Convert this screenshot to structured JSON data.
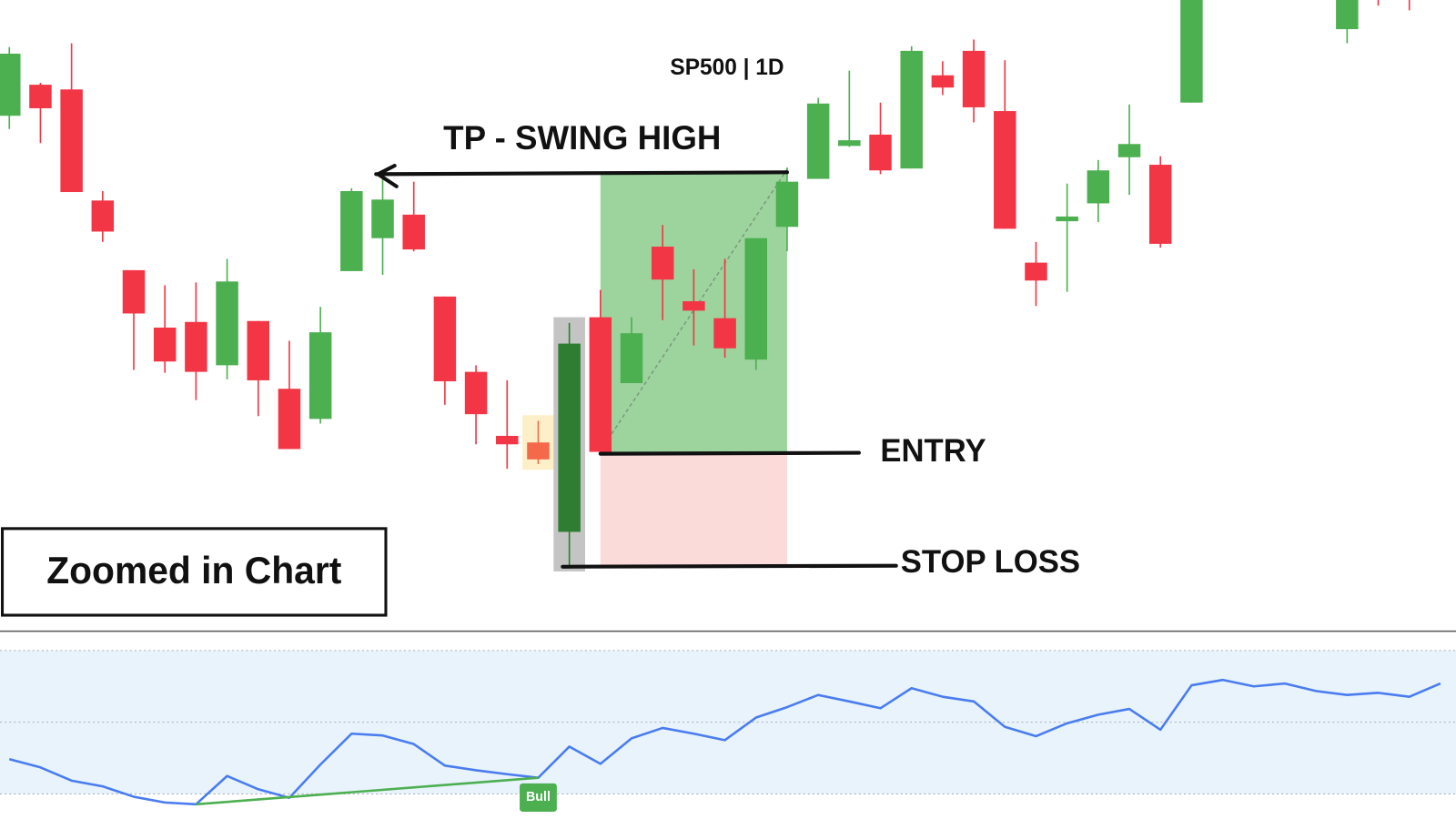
{
  "chart_data": {
    "type": "candlestick",
    "title": "SP500 | 1D",
    "annotation": "Zoomed in Chart",
    "x": [
      0,
      1,
      2,
      3,
      4,
      5,
      6,
      7,
      8,
      9,
      10,
      11,
      12,
      13,
      14,
      15,
      16,
      17,
      18,
      19,
      20,
      21,
      22,
      23,
      24,
      25,
      26,
      27,
      28,
      29,
      30,
      31,
      32,
      33,
      34,
      35,
      36,
      37,
      38,
      43,
      44,
      45
    ],
    "open": [
      547,
      580,
      575,
      457,
      383,
      322,
      328,
      282,
      329,
      257,
      225,
      382,
      417,
      442,
      355,
      275,
      207,
      200,
      105,
      333,
      263,
      408,
      350,
      332,
      288,
      429,
      480,
      515,
      527,
      491,
      590,
      616,
      552,
      391,
      435,
      454,
      503,
      495,
      561,
      639,
      690,
      690
    ],
    "high": [
      620,
      582,
      624,
      467,
      383,
      367,
      370,
      395,
      329,
      308,
      344,
      470,
      480,
      477,
      355,
      282,
      266,
      223,
      327,
      362,
      333,
      431,
      384,
      395,
      417,
      492,
      566,
      595,
      561,
      621,
      605,
      628,
      606,
      413,
      475,
      500,
      559,
      504,
      700,
      700,
      700,
      700
    ],
    "low": [
      533,
      518,
      466,
      413,
      277,
      274,
      245,
      267,
      228,
      193,
      220,
      382,
      378,
      403,
      240,
      198,
      172,
      177,
      69,
      190,
      263,
      330,
      303,
      290,
      277,
      403,
      480,
      514,
      485,
      491,
      569,
      540,
      427,
      345,
      360,
      434,
      463,
      407,
      561,
      624,
      664,
      659
    ],
    "close": [
      613,
      555,
      466,
      424,
      337,
      286,
      275,
      371,
      266,
      193,
      317,
      467,
      458,
      405,
      265,
      230,
      198,
      182,
      305,
      190,
      316,
      373,
      340,
      300,
      417,
      477,
      560,
      521,
      489,
      616,
      577,
      556,
      427,
      372,
      440,
      489,
      517,
      411,
      690,
      690,
      675,
      675
    ],
    "xlim": [
      -0.3,
      46.5
    ],
    "ylim": [
      0,
      670
    ],
    "up_color": "#4caf50",
    "down_color": "#f23645",
    "highlights": [
      {
        "index": 17,
        "color": "#f4694a",
        "band": "#fdf0c8"
      },
      {
        "index": 18,
        "color": "#2e7d32",
        "band": "#c4c4c4"
      }
    ],
    "position": {
      "label_tp": "TP - SWING HIGH",
      "label_entry": "ENTRY",
      "label_stop": "STOP LOSS",
      "take_profit": 485,
      "entry": 189,
      "stop_loss": 69,
      "start": 19,
      "end": 25,
      "profit_color": "#9dd49e",
      "loss_color": "#fbdada"
    },
    "rsi": {
      "values": [
        39.7,
        37.4,
        33.7,
        32.1,
        29.2,
        27.6,
        27.1,
        35.0,
        31.3,
        28.9,
        38.2,
        46.8,
        46.3,
        43.9,
        37.9,
        36.6,
        35.5,
        34.5,
        43.2,
        38.4,
        45.5,
        48.4,
        46.8,
        45.0,
        51.3,
        54.2,
        57.6,
        55.8,
        53.9,
        59.5,
        57.1,
        55.8,
        48.7,
        46.1,
        49.7,
        52.1,
        53.7,
        47.9,
        60.3,
        61.8,
        60.0,
        60.8,
        58.7,
        57.6,
        58.2,
        57.1,
        60.8
      ],
      "ylim": [
        23,
        75
      ],
      "levels": [
        30,
        50,
        70
      ],
      "color": "#4a7cf0",
      "band_color": "#e8f3fc",
      "divergence": {
        "from": 6,
        "to": 17,
        "label": "Bull",
        "color": "#4caf50"
      }
    }
  }
}
